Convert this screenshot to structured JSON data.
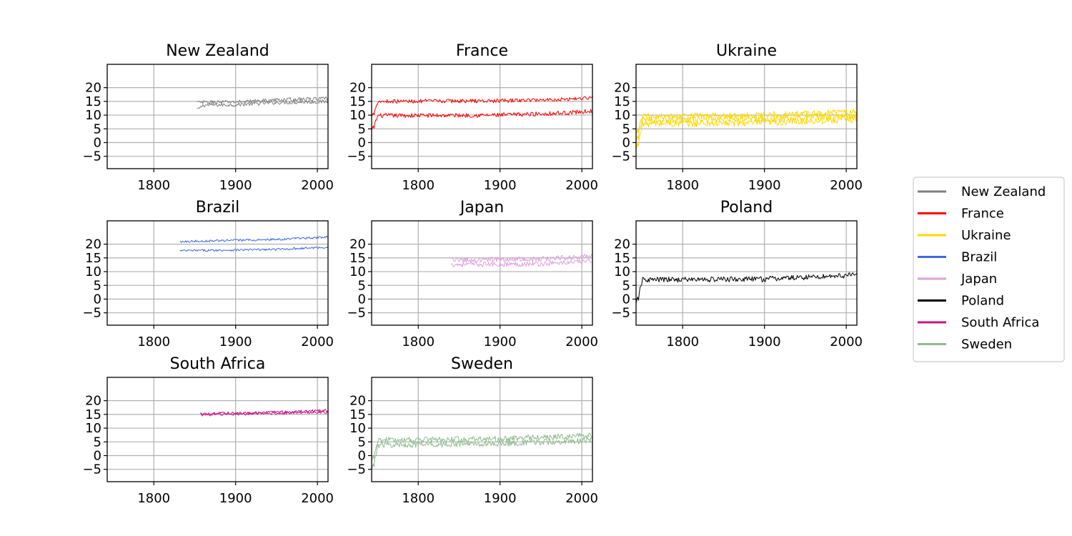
{
  "chart_data": {
    "type": "line",
    "layout": "small-multiples",
    "grid": true,
    "legend_placement": "right",
    "xlim": [
      1743,
      2013
    ],
    "ylim": [
      -9.5,
      28.5
    ],
    "x_ticks": [
      1800,
      1900,
      2000
    ],
    "y_ticks": [
      -5,
      0,
      5,
      10,
      15,
      20
    ],
    "panels": [
      {
        "title": "New Zealand",
        "color": "#808080",
        "series": [
          {
            "x_start": 1853,
            "x_end": 2013,
            "levels": [
              [
                1853,
                13.6
              ],
              [
                1900,
                13.8
              ],
              [
                1950,
                14.6
              ],
              [
                2013,
                14.9
              ]
            ],
            "noise": 0.7,
            "first_dip": 12.3
          },
          {
            "x_start": 1853,
            "x_end": 2013,
            "levels": [
              [
                1853,
                14.6
              ],
              [
                1900,
                14.8
              ],
              [
                1950,
                15.5
              ],
              [
                2013,
                16.0
              ]
            ],
            "noise": 0.7
          }
        ]
      },
      {
        "title": "France",
        "color": "#ff0000",
        "series": [
          {
            "x_start": 1743,
            "x_end": 2013,
            "levels": [
              [
                1743,
                9.8
              ],
              [
                1900,
                10.0
              ],
              [
                1980,
                10.8
              ],
              [
                2013,
                11.5
              ]
            ],
            "noise": 0.8,
            "first_dip": 4.6
          },
          {
            "x_start": 1743,
            "x_end": 2013,
            "levels": [
              [
                1743,
                15.0
              ],
              [
                1900,
                15.2
              ],
              [
                1980,
                15.8
              ],
              [
                2013,
                16.4
              ]
            ],
            "noise": 0.7,
            "first_dip": 9.5
          }
        ]
      },
      {
        "title": "Ukraine",
        "color": "#ffd700",
        "series": [
          {
            "x_start": 1743,
            "x_end": 2013,
            "levels": [
              [
                1743,
                6.8
              ],
              [
                1900,
                7.2
              ],
              [
                2013,
                8.6
              ]
            ],
            "noise": 1.3,
            "first_dip": -2.5
          },
          {
            "x_start": 1743,
            "x_end": 2013,
            "levels": [
              [
                1743,
                8.2
              ],
              [
                1900,
                8.6
              ],
              [
                2013,
                9.8
              ]
            ],
            "noise": 1.3,
            "first_dip": 0.5
          },
          {
            "x_start": 1743,
            "x_end": 2013,
            "levels": [
              [
                1743,
                9.6
              ],
              [
                1900,
                9.9
              ],
              [
                2013,
                11.2
              ]
            ],
            "noise": 1.2,
            "first_dip": 3.0
          }
        ]
      },
      {
        "title": "Brazil",
        "color": "#4169e1",
        "series": [
          {
            "x_start": 1832,
            "x_end": 2013,
            "levels": [
              [
                1832,
                17.6
              ],
              [
                1950,
                18.1
              ],
              [
                2013,
                18.9
              ]
            ],
            "noise": 0.4
          },
          {
            "x_start": 1832,
            "x_end": 2013,
            "levels": [
              [
                1832,
                21.0
              ],
              [
                1950,
                21.7
              ],
              [
                2013,
                22.6
              ]
            ],
            "noise": 0.4
          }
        ]
      },
      {
        "title": "Japan",
        "color": "#dda0dd",
        "series": [
          {
            "x_start": 1841,
            "x_end": 2013,
            "levels": [
              [
                1841,
                12.6
              ],
              [
                1950,
                12.8
              ],
              [
                2013,
                13.8
              ]
            ],
            "noise": 0.9
          },
          {
            "x_start": 1841,
            "x_end": 2013,
            "levels": [
              [
                1841,
                14.3
              ],
              [
                1950,
                14.6
              ],
              [
                2013,
                15.6
              ]
            ],
            "noise": 0.9
          }
        ]
      },
      {
        "title": "Poland",
        "color": "#000000",
        "series": [
          {
            "x_start": 1743,
            "x_end": 2013,
            "levels": [
              [
                1743,
                7.0
              ],
              [
                1900,
                7.3
              ],
              [
                2013,
                8.8
              ]
            ],
            "noise": 1.0,
            "first_dip": -1.4
          }
        ]
      },
      {
        "title": "South Africa",
        "color": "#c71585",
        "series": [
          {
            "x_start": 1857,
            "x_end": 2013,
            "levels": [
              [
                1857,
                14.9
              ],
              [
                1950,
                15.4
              ],
              [
                2013,
                15.9
              ]
            ],
            "noise": 0.5
          },
          {
            "x_start": 1857,
            "x_end": 2013,
            "levels": [
              [
                1857,
                15.3
              ],
              [
                1950,
                15.8
              ],
              [
                2013,
                16.5
              ]
            ],
            "noise": 0.5
          }
        ]
      },
      {
        "title": "Sweden",
        "color": "#8fbc8f",
        "series": [
          {
            "x_start": 1743,
            "x_end": 2013,
            "levels": [
              [
                1743,
                3.8
              ],
              [
                1900,
                4.4
              ],
              [
                2013,
                5.5
              ]
            ],
            "noise": 1.1,
            "first_dip": -5.2
          },
          {
            "x_start": 1743,
            "x_end": 2013,
            "levels": [
              [
                1743,
                5.6
              ],
              [
                1900,
                6.0
              ],
              [
                2013,
                7.3
              ]
            ],
            "noise": 1.1,
            "first_dip": -2.0
          }
        ]
      }
    ]
  },
  "legend": {
    "entries": [
      {
        "label": "New Zealand",
        "color": "#808080"
      },
      {
        "label": "France",
        "color": "#ff0000"
      },
      {
        "label": "Ukraine",
        "color": "#ffd700"
      },
      {
        "label": "Brazil",
        "color": "#4169e1"
      },
      {
        "label": "Japan",
        "color": "#dda0dd"
      },
      {
        "label": "Poland",
        "color": "#000000"
      },
      {
        "label": "South Africa",
        "color": "#c71585"
      },
      {
        "label": "Sweden",
        "color": "#8fbc8f"
      }
    ]
  }
}
